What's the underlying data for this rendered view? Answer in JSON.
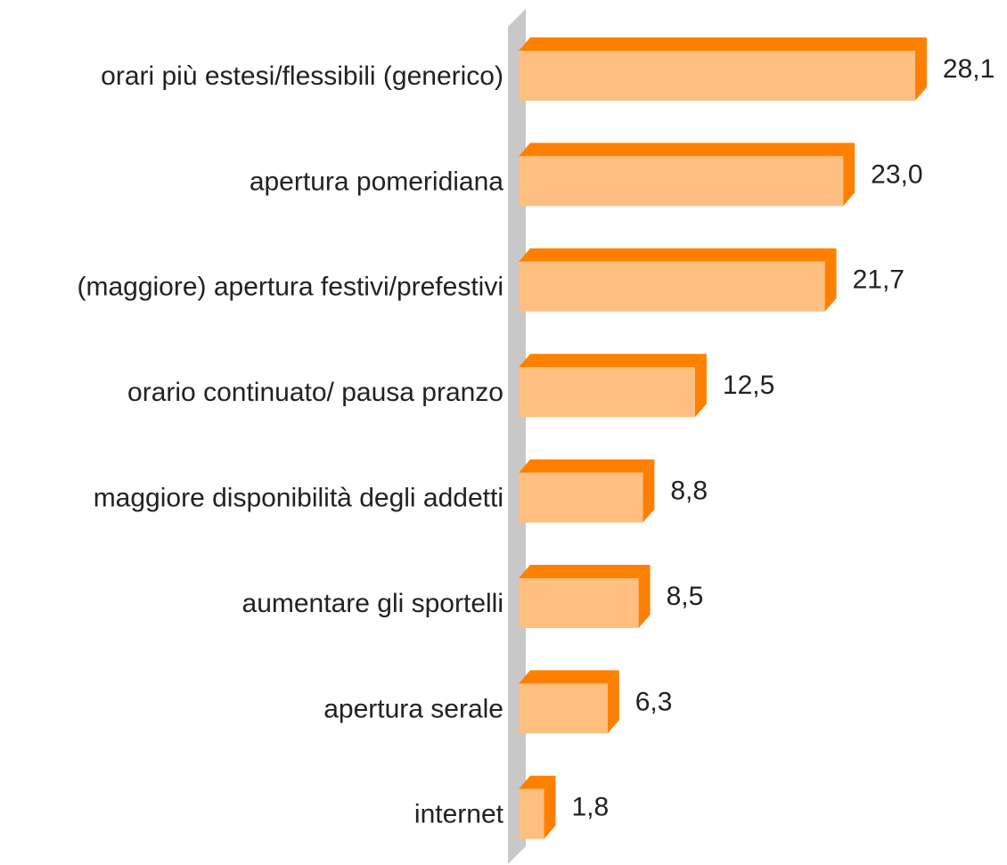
{
  "chart_data": {
    "type": "bar3d",
    "categories": [
      "orari più estesi/flessibili (generico)",
      "apertura pomeridiana",
      "(maggiore) apertura festivi/prefestivi",
      "orario continuato/ pausa pranzo",
      "maggiore disponibilità degli addetti",
      "aumentare gli sportelli",
      "apertura serale",
      "internet"
    ],
    "values": [
      28.1,
      23.0,
      21.7,
      12.5,
      8.8,
      8.5,
      6.3,
      1.8
    ],
    "value_labels": [
      "28,1",
      "23,0",
      "21,7",
      "12,5",
      "8,8",
      "8,5",
      "6,3",
      "1,8"
    ],
    "color": "#ffbf80",
    "side_color": "#ff8000",
    "xlim": [
      0,
      30
    ]
  }
}
